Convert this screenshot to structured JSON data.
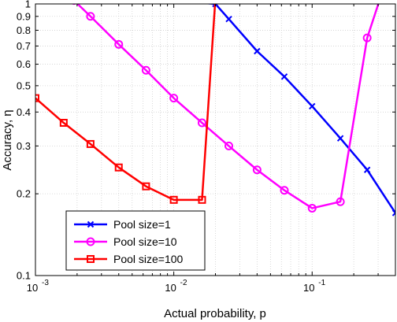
{
  "chart_data": {
    "type": "line",
    "xlabel": "Actual probability, p",
    "ylabel": "Accuracy, η",
    "xscale": "log",
    "yscale": "log",
    "xlim": [
      0.001,
      0.4
    ],
    "ylim": [
      0.1,
      1
    ],
    "grid": true,
    "legend_position": "bottom-left",
    "x_ticks": [
      {
        "value": 0.001,
        "base": "10",
        "exp": "-3"
      },
      {
        "value": 0.01,
        "base": "10",
        "exp": "-2"
      },
      {
        "value": 0.1,
        "base": "10",
        "exp": "-1"
      }
    ],
    "y_ticks": [
      {
        "value": 0.1,
        "label": "0.1"
      },
      {
        "value": 0.2,
        "label": "0.2"
      },
      {
        "value": 0.3,
        "label": "0.3"
      },
      {
        "value": 0.4,
        "label": "0.4"
      },
      {
        "value": 0.5,
        "label": "0.5"
      },
      {
        "value": 0.6,
        "label": "0.6"
      },
      {
        "value": 0.7,
        "label": "0.7"
      },
      {
        "value": 0.8,
        "label": "0.8"
      },
      {
        "value": 0.9,
        "label": "0.9"
      },
      {
        "value": 1,
        "label": "1"
      }
    ],
    "series": [
      {
        "name": "Pool size=1",
        "color": "#0000ff",
        "marker": "x",
        "points": [
          {
            "x": 0.0019,
            "y": 1.1
          },
          {
            "x": 0.02,
            "y": 1.0
          },
          {
            "x": 0.025,
            "y": 0.88
          },
          {
            "x": 0.04,
            "y": 0.67
          },
          {
            "x": 0.063,
            "y": 0.54
          },
          {
            "x": 0.1,
            "y": 0.42
          },
          {
            "x": 0.16,
            "y": 0.32
          },
          {
            "x": 0.25,
            "y": 0.245
          },
          {
            "x": 0.4,
            "y": 0.17
          }
        ]
      },
      {
        "name": "Pool size=10",
        "color": "#ff00ff",
        "marker": "circle",
        "points": [
          {
            "x": 0.0019,
            "y": 1.03
          },
          {
            "x": 0.0025,
            "y": 0.9
          },
          {
            "x": 0.004,
            "y": 0.71
          },
          {
            "x": 0.0063,
            "y": 0.57
          },
          {
            "x": 0.01,
            "y": 0.45
          },
          {
            "x": 0.016,
            "y": 0.365
          },
          {
            "x": 0.025,
            "y": 0.3
          },
          {
            "x": 0.04,
            "y": 0.245
          },
          {
            "x": 0.063,
            "y": 0.206
          },
          {
            "x": 0.1,
            "y": 0.177
          },
          {
            "x": 0.16,
            "y": 0.187
          },
          {
            "x": 0.25,
            "y": 0.75
          },
          {
            "x": 0.32,
            "y": 1.1
          }
        ]
      },
      {
        "name": "Pool size=100",
        "color": "#ff0000",
        "marker": "square",
        "points": [
          {
            "x": 0.001,
            "y": 0.45
          },
          {
            "x": 0.0016,
            "y": 0.365
          },
          {
            "x": 0.0025,
            "y": 0.305
          },
          {
            "x": 0.004,
            "y": 0.25
          },
          {
            "x": 0.0063,
            "y": 0.213
          },
          {
            "x": 0.01,
            "y": 0.19
          },
          {
            "x": 0.016,
            "y": 0.19
          },
          {
            "x": 0.02,
            "y": 1.05
          }
        ]
      }
    ]
  }
}
